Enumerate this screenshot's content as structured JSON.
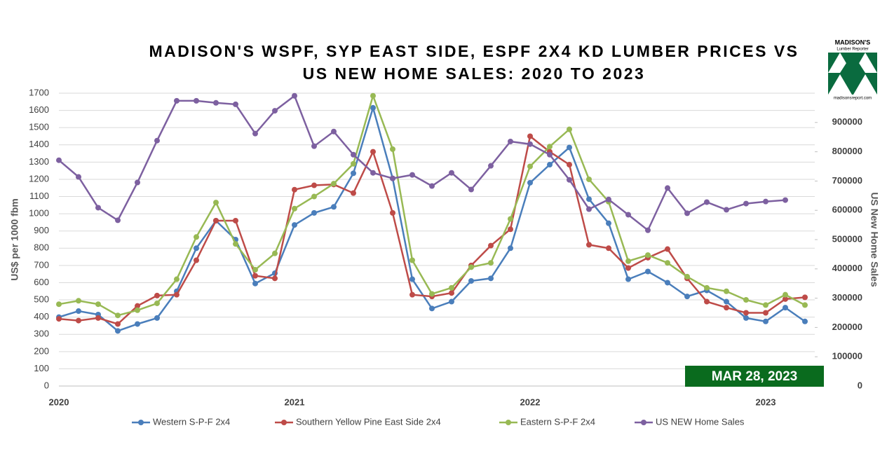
{
  "chart_data": {
    "type": "line",
    "title": [
      "MADISON'S WSPF, SYP EAST SIDE, ESPF 2X4 KD LUMBER PRICES VS",
      "US NEW HOME SALES: 2020 TO 2023"
    ],
    "logo": [
      "MADISON'S",
      "Lumber Reporter",
      "madisonsreport.com"
    ],
    "annotation": "MAR 28, 2023",
    "y_label": "US$ per 1000 fbm",
    "y2_label": "US New Home Sales",
    "categories": [
      "2020",
      null,
      null,
      null,
      null,
      null,
      null,
      null,
      null,
      null,
      null,
      null,
      "2021",
      null,
      null,
      null,
      null,
      null,
      null,
      null,
      null,
      null,
      null,
      null,
      "2022",
      null,
      null,
      null,
      null,
      null,
      null,
      null,
      null,
      null,
      null,
      null,
      "2023",
      null,
      null
    ],
    "ylim": [
      0,
      1700
    ],
    "yticks": [
      0,
      100,
      200,
      300,
      400,
      500,
      600,
      700,
      800,
      900,
      1000,
      1100,
      1200,
      1300,
      1400,
      1500,
      1600,
      1700
    ],
    "y2lim": [
      0,
      1000000
    ],
    "y2ticks": [
      0,
      100000,
      200000,
      300000,
      400000,
      500000,
      600000,
      700000,
      800000,
      900000
    ],
    "grid": true,
    "legend": "bottom",
    "series": [
      {
        "name": "Western S-P-F 2x4",
        "color": "#4a7ebb",
        "values": [
          400,
          435,
          415,
          320,
          360,
          395,
          550,
          800,
          960,
          850,
          595,
          655,
          935,
          1005,
          1040,
          1235,
          1615,
          1205,
          620,
          450,
          490,
          610,
          625,
          800,
          1180,
          1285,
          1385,
          1085,
          945,
          620,
          665,
          600,
          520,
          555,
          490,
          395,
          375,
          455,
          375
        ]
      },
      {
        "name": "Southern Yellow Pine East Side 2x4",
        "color": "#be4b48",
        "values": [
          390,
          380,
          395,
          360,
          465,
          525,
          530,
          730,
          960,
          960,
          640,
          625,
          1140,
          1165,
          1170,
          1120,
          1360,
          1005,
          530,
          520,
          540,
          700,
          815,
          910,
          1450,
          1360,
          1285,
          820,
          800,
          685,
          745,
          795,
          625,
          490,
          455,
          425,
          425,
          505,
          515
        ]
      },
      {
        "name": "Eastern S-P-F 2x4",
        "color": "#98b954",
        "values": [
          475,
          495,
          475,
          410,
          440,
          480,
          620,
          865,
          1065,
          825,
          675,
          770,
          1030,
          1100,
          1175,
          1290,
          1685,
          1375,
          730,
          535,
          570,
          690,
          715,
          970,
          1275,
          1390,
          1490,
          1200,
          1070,
          725,
          760,
          715,
          635,
          570,
          550,
          500,
          470,
          530,
          470
        ]
      },
      {
        "name": "US NEW Home Sales",
        "color": "#7d60a0",
        "axis": "y2",
        "values": [
          771000,
          714000,
          609000,
          566000,
          695000,
          838000,
          974000,
          974000,
          967000,
          962000,
          862000,
          940000,
          991000,
          819000,
          869000,
          790000,
          728000,
          709000,
          721000,
          683000,
          728000,
          671000,
          752000,
          835000,
          826000,
          790000,
          704000,
          604000,
          637000,
          585000,
          532000,
          676000,
          590000,
          628000,
          602000,
          623000,
          630000,
          635000,
          null
        ]
      }
    ]
  }
}
